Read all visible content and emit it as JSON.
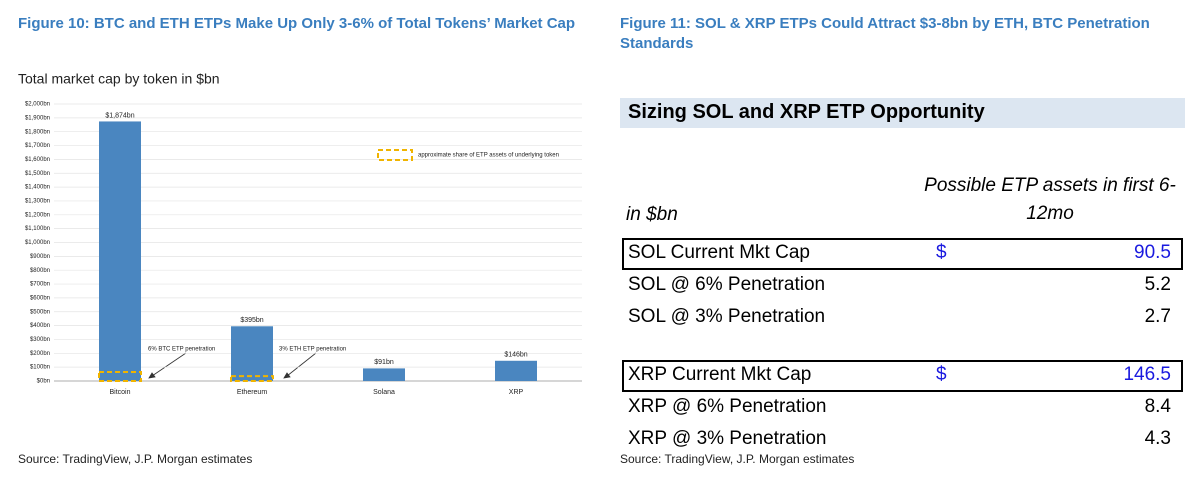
{
  "figure10": {
    "title": "Figure 10: BTC and ETH ETPs Make Up Only 3-6% of Total Tokens’ Market Cap",
    "source": "Source: TradingView, J.P. Morgan estimates"
  },
  "chart_data": {
    "type": "bar",
    "subtitle": "Total market cap by token in $bn",
    "categories": [
      "Bitcoin",
      "Ethereum",
      "Solana",
      "XRP"
    ],
    "series": [
      {
        "name": null,
        "color": "#4a86c0",
        "values": [
          1874,
          395,
          91,
          146
        ],
        "value_labels": [
          "$1,874bn",
          "$395bn",
          "$91bn",
          "$146bn"
        ]
      },
      {
        "name": "approximate share of ETP assets of underlying token",
        "color": "#f0b400",
        "values": [
          65,
          35,
          null,
          null
        ]
      }
    ],
    "annotations": [
      "6% BTC ETP penetration",
      "3% ETH ETP penetration"
    ],
    "ylim": [
      0,
      2000
    ],
    "yticks": [
      {
        "value": 0,
        "label": "$0bn"
      },
      {
        "value": 100,
        "label": "$100bn"
      },
      {
        "value": 200,
        "label": "$200bn"
      },
      {
        "value": 300,
        "label": "$300bn"
      },
      {
        "value": 400,
        "label": "$400bn"
      },
      {
        "value": 500,
        "label": "$500bn"
      },
      {
        "value": 600,
        "label": "$600bn"
      },
      {
        "value": 700,
        "label": "$700bn"
      },
      {
        "value": 800,
        "label": "$800bn"
      },
      {
        "value": 900,
        "label": "$900bn"
      },
      {
        "value": 1000,
        "label": "$1,000bn"
      },
      {
        "value": 1100,
        "label": "$1,100bn"
      },
      {
        "value": 1200,
        "label": "$1,200bn"
      },
      {
        "value": 1300,
        "label": "$1,300bn"
      },
      {
        "value": 1400,
        "label": "$1,400bn"
      },
      {
        "value": 1500,
        "label": "$1,500bn"
      },
      {
        "value": 1600,
        "label": "$1,600bn"
      },
      {
        "value": 1700,
        "label": "$1,700bn"
      },
      {
        "value": 1800,
        "label": "$1,800bn"
      },
      {
        "value": 1900,
        "label": "$1,900bn"
      },
      {
        "value": 2000,
        "label": "$2,000bn"
      }
    ],
    "grid": true,
    "legend": "upper right"
  },
  "figure11": {
    "title": "Figure 11: SOL & XRP ETPs Could Attract $3-8bn by ETH, BTC Penetration Standards",
    "table": {
      "title": "Sizing SOL and XRP ETP Opportunity",
      "unit": "in $bn",
      "column": "Possible ETP assets in first 6-12mo",
      "groups": [
        [
          {
            "label": "SOL Current Mkt Cap",
            "currency": "$",
            "value": 90.5,
            "boxed": true
          },
          {
            "label": "SOL @ 6% Penetration",
            "value": 5.2
          },
          {
            "label": "SOL @ 3% Penetration",
            "value": 2.7
          }
        ],
        [
          {
            "label": "XRP Current Mkt Cap",
            "currency": "$",
            "value": 146.5,
            "boxed": true
          },
          {
            "label": "XRP @ 6% Penetration",
            "value": 8.4
          },
          {
            "label": "XRP @ 3% Penetration",
            "value": 4.3
          }
        ]
      ]
    },
    "source": "Source: TradingView, J.P. Morgan estimates"
  }
}
